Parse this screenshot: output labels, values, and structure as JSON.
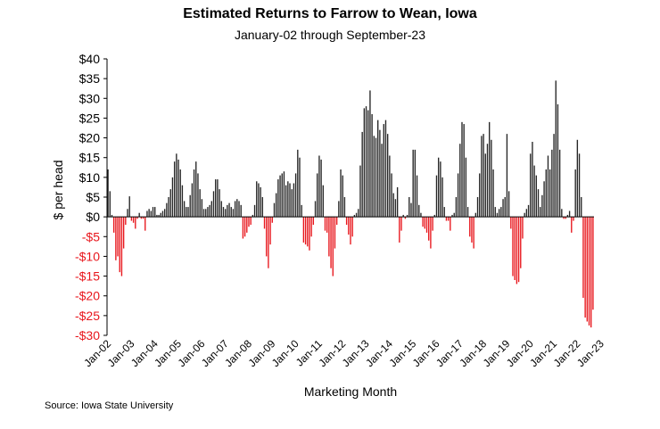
{
  "source": "Source: Iowa State University",
  "chart_data": {
    "type": "bar",
    "title": "Estimated Returns to Farrow to Wean, Iowa",
    "subtitle": "January-02 through September-23",
    "xlabel": "Marketing Month",
    "ylabel": "$ per head",
    "ylim": [
      -30,
      40
    ],
    "y_ticks": [
      40,
      35,
      30,
      25,
      20,
      15,
      10,
      5,
      0,
      -5,
      -10,
      -15,
      -20,
      -25,
      -30
    ],
    "y_tick_labels": [
      "$40",
      "$35",
      "$30",
      "$25",
      "$20",
      "$15",
      "$10",
      "$5",
      "$0",
      "-$5",
      "-$10",
      "-$15",
      "-$20",
      "-$25",
      "-$30"
    ],
    "x_tick_labels": [
      "Jan-02",
      "Jan-03",
      "Jan-04",
      "Jan-05",
      "Jan-06",
      "Jan-07",
      "Jan-08",
      "Jan-09",
      "Jan-10",
      "Jan-11",
      "Jan-12",
      "Jan-13",
      "Jan-14",
      "Jan-15",
      "Jan-16",
      "Jan-17",
      "Jan-18",
      "Jan-19",
      "Jan-20",
      "Jan-21",
      "Jan-22",
      "Jan-23"
    ],
    "x_start": "Jan-02",
    "x_end": "Sep-23",
    "frequency": "monthly",
    "positive_color": "#262626",
    "negative_color": "#e8161c",
    "grid": false,
    "legend": "none",
    "values": [
      12,
      6.5,
      0.5,
      -4,
      -11,
      -10,
      -14,
      -15,
      -8,
      -2,
      2,
      5.2,
      -1,
      -1.5,
      -3,
      -0.5,
      1,
      -0.5,
      -0.5,
      -3.5,
      1.5,
      2,
      1.5,
      2.5,
      2.5,
      0.5,
      0.5,
      1,
      1.5,
      2,
      3.5,
      5,
      7,
      10,
      14,
      16,
      14.5,
      12,
      8,
      4,
      2.5,
      2.5,
      5.5,
      8.5,
      12,
      14,
      11,
      7,
      4.5,
      2,
      2,
      2.5,
      3,
      4,
      6.5,
      9.5,
      9.5,
      7,
      4,
      2.5,
      2,
      3,
      3.5,
      2.5,
      2,
      4,
      4.5,
      4,
      3,
      -5.5,
      -5,
      -4,
      -2.5,
      -2,
      0.5,
      3,
      9,
      8.5,
      7.5,
      5,
      -3,
      -10,
      -13,
      -7,
      -1.5,
      3.5,
      6,
      9.5,
      10.5,
      11,
      11.5,
      8,
      9,
      8.5,
      7,
      8.5,
      11,
      17,
      15,
      3,
      -6.5,
      -7,
      -7.5,
      -8.5,
      -5,
      -2,
      4,
      11,
      15.5,
      14.5,
      8,
      -3.5,
      -4,
      -10,
      -13,
      -15,
      -8,
      -2,
      4,
      12,
      10.5,
      5,
      -2,
      -4.5,
      -7,
      -5,
      0.5,
      1,
      2,
      13,
      21.5,
      27.5,
      28,
      27,
      32,
      26,
      20.5,
      20,
      24.5,
      22,
      18.5,
      23.5,
      24.5,
      21,
      15.5,
      11,
      6,
      4.5,
      7.5,
      -6.5,
      -3.5,
      0.5,
      -0.5,
      0.5,
      5,
      3.5,
      17,
      17,
      10.5,
      3,
      1,
      -2.5,
      -3,
      -4,
      -6,
      -8,
      -3.5,
      0.5,
      10.5,
      15,
      14,
      10,
      2.5,
      -1,
      -1,
      -3.5,
      0.5,
      1,
      5,
      11,
      18.5,
      24,
      23.5,
      15,
      2.5,
      -5,
      -6.5,
      -8,
      1,
      5,
      11,
      20.5,
      21,
      16,
      18.5,
      24,
      19.5,
      12,
      2.5,
      1,
      2,
      2.5,
      4.5,
      5,
      21,
      6.5,
      -3,
      -15,
      -16,
      -17,
      -16.5,
      -13,
      -5.5,
      1,
      2,
      3,
      16,
      19,
      13,
      10.5,
      7,
      2.5,
      5.5,
      9,
      12,
      15.5,
      12,
      17,
      21,
      34.5,
      28.5,
      17,
      2,
      -0.5,
      -0.5,
      0.5,
      1.5,
      -4,
      -1,
      12,
      19.5,
      16,
      5,
      -20.5,
      -25.5,
      -26.5,
      -27.5,
      -28,
      -23.5
    ]
  }
}
